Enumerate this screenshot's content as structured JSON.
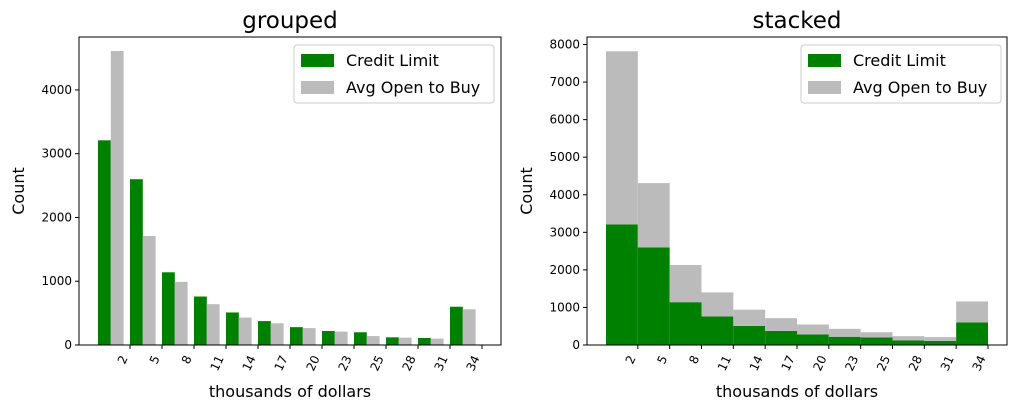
{
  "colors": {
    "credit": "#008000",
    "open": "#bbbbbb"
  },
  "chart_data": [
    {
      "type": "bar",
      "mode": "grouped",
      "title": "grouped",
      "xlabel": "thousands of dollars",
      "ylabel": "Count",
      "xticks": [
        "2",
        "5",
        "8",
        "11",
        "14",
        "17",
        "20",
        "23",
        "25",
        "28",
        "31",
        "34"
      ],
      "yticks": [
        "0",
        "1000",
        "2000",
        "3000",
        "4000"
      ],
      "ylim": [
        0,
        4830
      ],
      "legend": "top-right",
      "series": [
        {
          "name": "Credit Limit",
          "values": [
            3210,
            2600,
            1140,
            760,
            510,
            375,
            280,
            220,
            200,
            120,
            110,
            600
          ]
        },
        {
          "name": "Avg Open to Buy",
          "values": [
            4610,
            1710,
            990,
            640,
            430,
            340,
            265,
            210,
            140,
            115,
            100,
            560
          ]
        }
      ]
    },
    {
      "type": "bar",
      "mode": "stacked",
      "title": "stacked",
      "xlabel": "thousands of dollars",
      "ylabel": "Count",
      "xticks": [
        "2",
        "5",
        "8",
        "11",
        "14",
        "17",
        "20",
        "23",
        "25",
        "28",
        "31",
        "34"
      ],
      "yticks": [
        "0",
        "1000",
        "2000",
        "3000",
        "4000",
        "5000",
        "6000",
        "7000",
        "8000"
      ],
      "ylim": [
        0,
        8200
      ],
      "legend": "top-right",
      "series": [
        {
          "name": "Credit Limit",
          "values": [
            3210,
            2600,
            1140,
            760,
            510,
            375,
            280,
            220,
            200,
            120,
            110,
            600
          ]
        },
        {
          "name": "Avg Open to Buy",
          "values": [
            4610,
            1710,
            990,
            640,
            430,
            340,
            265,
            210,
            140,
            115,
            100,
            560
          ]
        }
      ]
    }
  ]
}
